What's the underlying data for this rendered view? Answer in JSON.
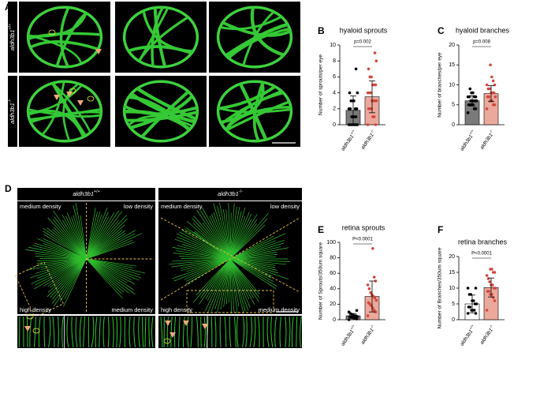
{
  "panel_letters": [
    "A",
    "B",
    "C",
    "D",
    "E",
    "F"
  ],
  "panel_a": {
    "row_labels": [
      {
        "gene": "aldh3b1",
        "genotype": "+/+"
      },
      {
        "gene": "aldh3b1",
        "genotype": "-/-"
      }
    ]
  },
  "panel_d": {
    "images": [
      {
        "gene": "aldh3b1",
        "genotype": "+/+",
        "regions": [
          "medium density",
          "low density",
          "high density",
          "medium density"
        ]
      },
      {
        "gene": "aldh3b1",
        "genotype": "-/-",
        "regions": [
          "medium density",
          "low density",
          "high density",
          "medium density"
        ]
      }
    ]
  },
  "chart_data": [
    {
      "type": "bar",
      "title": "hyaloid sprouts",
      "y_label": "Number of sprouts/per eye",
      "categories": [
        {
          "gene": "aldh3b1",
          "genotype": "+/+"
        },
        {
          "gene": "aldh3b1",
          "genotype": "-/-"
        }
      ],
      "values": [
        1.8,
        3.5
      ],
      "errors": [
        1.8,
        2.0
      ],
      "points": [
        [
          0,
          0,
          0,
          0,
          0,
          0,
          0,
          0,
          1,
          1,
          1,
          1,
          2,
          2,
          2,
          2,
          3,
          3,
          3,
          4,
          4,
          7
        ],
        [
          0,
          0,
          1,
          1,
          2,
          2,
          2,
          3,
          3,
          3,
          3,
          4,
          4,
          4,
          5,
          5,
          5,
          6,
          6,
          7,
          8,
          9
        ]
      ],
      "colors": [
        "#7a7a7a",
        "#eba99c"
      ],
      "point_colors": [
        "#000000",
        "#d1483c"
      ],
      "p_label": "p=0.002",
      "ylim": [
        0,
        10
      ],
      "yticks": [
        0,
        2,
        4,
        6,
        8,
        10
      ]
    },
    {
      "type": "bar",
      "title": "hyaloid branches",
      "y_label": "Number of branches/per eye",
      "categories": [
        {
          "gene": "aldh3b1",
          "genotype": "+/+"
        },
        {
          "gene": "aldh3b1",
          "genotype": "-/-"
        }
      ],
      "values": [
        6,
        7.8
      ],
      "errors": [
        1.3,
        2.0
      ],
      "points": [
        [
          3,
          4,
          4,
          5,
          5,
          5,
          5,
          6,
          6,
          6,
          6,
          6,
          7,
          7,
          7,
          7,
          8,
          8,
          9
        ],
        [
          4,
          5,
          5,
          6,
          6,
          7,
          7,
          7,
          8,
          8,
          8,
          9,
          9,
          10,
          10,
          11,
          12,
          15
        ]
      ],
      "colors": [
        "#7a7a7a",
        "#eba99c"
      ],
      "point_colors": [
        "#000000",
        "#d1483c"
      ],
      "p_label": "p=0.008",
      "ylim": [
        0,
        20
      ],
      "yticks": [
        0,
        5,
        10,
        15,
        20
      ]
    },
    {
      "type": "bar",
      "title": "retina sprouts",
      "y_label": "Number of Sprouts/350um square",
      "categories": [
        {
          "gene": "aldh3b1",
          "genotype": "+/+"
        },
        {
          "gene": "aldh3b1",
          "genotype": "-/-"
        }
      ],
      "values": [
        5,
        30
      ],
      "errors": [
        3,
        20
      ],
      "points": [
        [
          0,
          1,
          2,
          2,
          3,
          3,
          4,
          4,
          5,
          5,
          6,
          7,
          8,
          10,
          12
        ],
        [
          5,
          10,
          12,
          15,
          18,
          20,
          22,
          25,
          28,
          30,
          32,
          35,
          40,
          45,
          50,
          55,
          92
        ]
      ],
      "colors": [
        "#7a7a7a",
        "#eba99c"
      ],
      "point_colors": [
        "#000000",
        "#d1483c"
      ],
      "p_label": "P<0.0001",
      "ylim": [
        0,
        100
      ],
      "yticks": [
        0,
        20,
        40,
        60,
        80,
        100
      ]
    },
    {
      "type": "bar",
      "title": "retina branches",
      "y_label": "Number of Branches/350um square",
      "categories": [
        {
          "gene": "aldh3b1",
          "genotype": "+/+"
        },
        {
          "gene": "aldh3b1",
          "genotype": "-/-"
        }
      ],
      "values": [
        5,
        10.2
      ],
      "errors": [
        2.8,
        3.0
      ],
      "points": [
        [
          2,
          2,
          3,
          3,
          3,
          4,
          4,
          5,
          5,
          6,
          6,
          8,
          8,
          10,
          10
        ],
        [
          3,
          6,
          7,
          8,
          8,
          9,
          9,
          10,
          10,
          11,
          11,
          12,
          13,
          14,
          15,
          15,
          16,
          16
        ]
      ],
      "colors": [
        "#ffffff",
        "#eba99c"
      ],
      "point_colors": [
        "#000000",
        "#d1483c"
      ],
      "p_label": "P<0.0001",
      "ylim": [
        0,
        20
      ],
      "yticks": [
        0,
        5,
        10,
        15,
        20
      ]
    }
  ]
}
